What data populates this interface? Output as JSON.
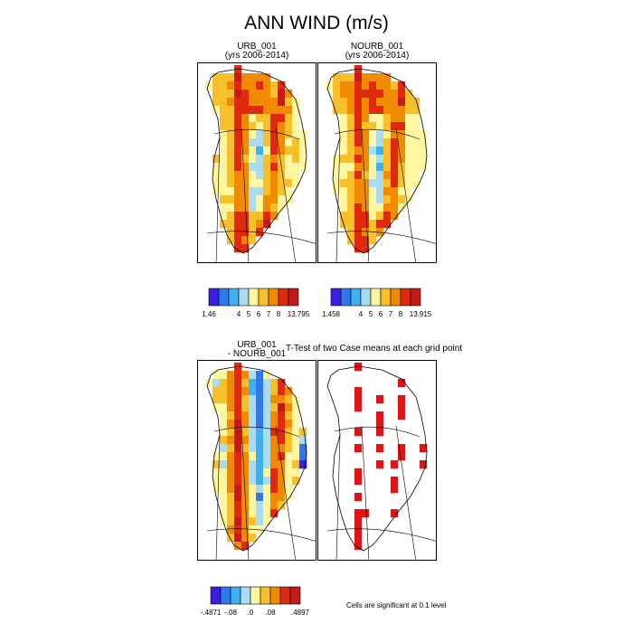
{
  "figure": {
    "title": "ANN WIND (m/s)",
    "note": "Cells are significant at 0.1 level"
  },
  "chart_data": [
    {
      "type": "heatmap",
      "title_line1": "URB_001",
      "title_line2": "(yrs 2006-2014)",
      "colorbar": {
        "colors": [
          "#3a1fe0",
          "#2f78f0",
          "#41b0f0",
          "#a9dcf3",
          "#fff6a1",
          "#f7c02a",
          "#f08a00",
          "#e02a0d",
          "#c41a1a"
        ],
        "tick_labels": [
          "1.46",
          "4",
          "5",
          "6",
          "7",
          "8",
          "13.795"
        ],
        "min": 1.46,
        "max": 13.795
      }
    },
    {
      "type": "heatmap",
      "title_line1": "NOURB_001",
      "title_line2": "(yrs 2006-2014)",
      "colorbar": {
        "colors": [
          "#3a1fe0",
          "#2f78f0",
          "#41b0f0",
          "#a9dcf3",
          "#fff6a1",
          "#f7c02a",
          "#f08a00",
          "#e02a0d",
          "#c41a1a"
        ],
        "tick_labels": [
          "1.458",
          "4",
          "5",
          "6",
          "7",
          "8",
          "13.915"
        ],
        "min": 1.458,
        "max": 13.915
      }
    },
    {
      "type": "heatmap",
      "title_line1": "URB_001",
      "title_line2": "- NOURB_001",
      "colorbar": {
        "colors": [
          "#3a1fe0",
          "#2f78f0",
          "#41b0f0",
          "#a9dcf3",
          "#fff6a1",
          "#f7c02a",
          "#f08a00",
          "#e02a0d",
          "#c41a1a"
        ],
        "tick_labels": [
          "-.4871",
          "-.08",
          ".0",
          ".08",
          ".4897"
        ],
        "min": -0.4871,
        "max": 0.4897
      }
    },
    {
      "type": "heatmap",
      "title": "T-Test of two Case means at each grid point",
      "significant_color": "#e01414"
    }
  ]
}
